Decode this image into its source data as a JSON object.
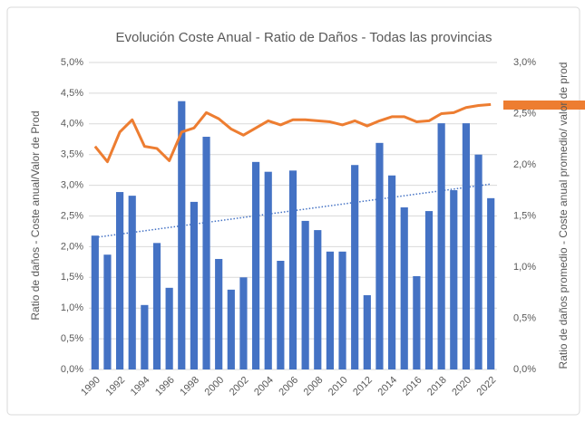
{
  "chart_data": {
    "type": "bar",
    "title": "Evolución Coste Anual - Ratio de Daños -  Todas las provincias",
    "ylabel": "Ratio de daños - Coste anual/Valor de Prod",
    "y2label": "Ratio de daños promedio - Coste anual promedio/ valor de prod",
    "categories": [
      "1990",
      null,
      "1992",
      null,
      "1994",
      null,
      "1996",
      null,
      "1998",
      null,
      "2000",
      null,
      "2002",
      null,
      "2004",
      null,
      "2006",
      null,
      "2008",
      null,
      "2010",
      null,
      "2012",
      null,
      "2014",
      null,
      "2016",
      null,
      "2018",
      null,
      "2020",
      null,
      "2022"
    ],
    "series": [
      {
        "type": "bar",
        "color": "#4472c4",
        "values": [
          2.18,
          1.87,
          2.89,
          2.83,
          1.05,
          2.06,
          1.33,
          4.37,
          2.73,
          3.79,
          1.8,
          1.3,
          1.5,
          3.38,
          3.22,
          1.77,
          3.24,
          2.42,
          2.27,
          1.92,
          1.92,
          3.33,
          1.21,
          3.69,
          3.16,
          2.64,
          1.52,
          2.58,
          4.01,
          2.92,
          4.01,
          3.5,
          2.79
        ]
      },
      {
        "type": "line",
        "axis": "y2",
        "color": "#ed7d31",
        "values": [
          2.18,
          2.03,
          2.32,
          2.44,
          2.18,
          2.16,
          2.04,
          2.32,
          2.36,
          2.51,
          2.45,
          2.35,
          2.29,
          2.36,
          2.43,
          2.39,
          2.44,
          2.44,
          2.43,
          2.42,
          2.39,
          2.43,
          2.38,
          2.43,
          2.47,
          2.47,
          2.42,
          2.43,
          2.5,
          2.51,
          2.56,
          2.58,
          2.59
        ]
      }
    ],
    "trend": {
      "type": "linear",
      "color": "#4472c4",
      "values": [
        2.15,
        3.02
      ]
    },
    "ylim": [
      0,
      5
    ],
    "yticks": [
      {
        "value": 0,
        "label": "0,0%"
      },
      {
        "value": 0.5,
        "label": "0,5%"
      },
      {
        "value": 1,
        "label": "1,0%"
      },
      {
        "value": 1.5,
        "label": "1,5%"
      },
      {
        "value": 2,
        "label": "2,0%"
      },
      {
        "value": 2.5,
        "label": "2,5%"
      },
      {
        "value": 3,
        "label": "3,0%"
      },
      {
        "value": 3.5,
        "label": "3,5%"
      },
      {
        "value": 4,
        "label": "4,0%"
      },
      {
        "value": 4.5,
        "label": "4,5%"
      },
      {
        "value": 5,
        "label": "5,0%"
      }
    ],
    "y2lim": [
      0,
      3
    ],
    "y2ticks": [
      {
        "value": 0,
        "label": "0,0%"
      },
      {
        "value": 0.5,
        "label": "0,5%"
      },
      {
        "value": 1,
        "label": "1,0%"
      },
      {
        "value": 1.5,
        "label": "1,5%"
      },
      {
        "value": 2,
        "label": "2,0%"
      },
      {
        "value": 2.5,
        "label": "2,5%"
      },
      {
        "value": 3,
        "label": "3,0%"
      }
    ],
    "grid": true
  }
}
